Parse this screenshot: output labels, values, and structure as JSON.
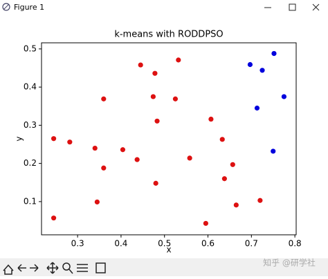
{
  "window": {
    "title": "Figure 1"
  },
  "chart_data": {
    "type": "scatter",
    "title": "k-means with RODDPSO",
    "x_label": "x",
    "y_label": "y",
    "xlim": [
      0.217,
      0.803
    ],
    "ylim": [
      0.013,
      0.516
    ],
    "xticks": [
      0.3,
      0.4,
      0.5,
      0.6,
      0.7,
      0.8
    ],
    "yticks": [
      0.1,
      0.2,
      0.3,
      0.4,
      0.5
    ],
    "series": [
      {
        "color": "#dd1111",
        "x": [
          0.245,
          0.245,
          0.282,
          0.34,
          0.345,
          0.36,
          0.36,
          0.404,
          0.437,
          0.445,
          0.474,
          0.478,
          0.48,
          0.483,
          0.525,
          0.532,
          0.558,
          0.595,
          0.607,
          0.633,
          0.638,
          0.657,
          0.665,
          0.72
        ],
        "y": [
          0.265,
          0.057,
          0.256,
          0.24,
          0.099,
          0.369,
          0.188,
          0.236,
          0.21,
          0.458,
          0.375,
          0.436,
          0.148,
          0.311,
          0.369,
          0.471,
          0.214,
          0.043,
          0.316,
          0.263,
          0.16,
          0.197,
          0.091,
          0.103
        ]
      },
      {
        "color": "#0000dd",
        "x": [
          0.697,
          0.725,
          0.752,
          0.713,
          0.775,
          0.75
        ],
        "y": [
          0.459,
          0.444,
          0.488,
          0.345,
          0.375,
          0.232
        ]
      }
    ]
  },
  "watermark": "知乎 @研学社"
}
